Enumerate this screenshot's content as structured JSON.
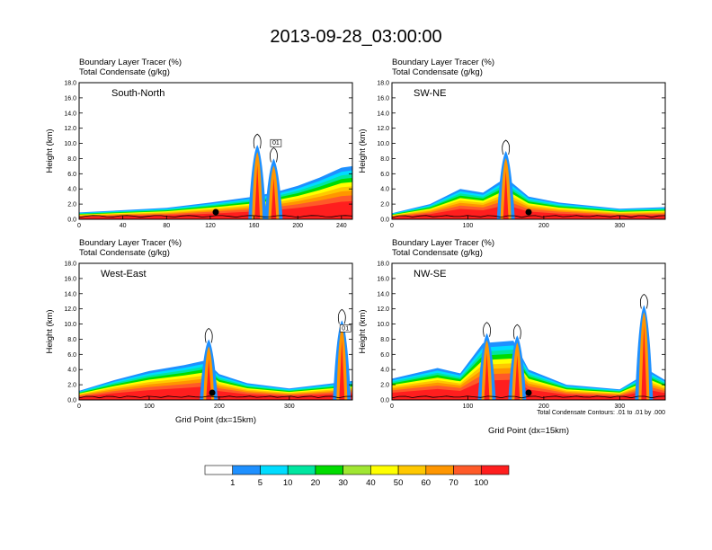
{
  "page": {
    "title": "2013-09-28_03:00:00",
    "xlabel": "Grid Point (dx=15km)",
    "note": "Total Condensate Contours: .01 to .01 by .000"
  },
  "colors": {
    "levels": [
      "#ffffff",
      "#1e7cff",
      "#1eb4ff",
      "#00f0f0",
      "#10e080",
      "#00dc00",
      "#a0e632",
      "#ffff00",
      "#ffc800",
      "#ff9600",
      "#ff5a28",
      "#ff1e1e",
      "#e60000"
    ]
  },
  "chart_data": [
    {
      "type": "heatmap",
      "name": "South-North",
      "title_line1": "Boundary Layer Tracer    (%)",
      "title_line2": "Total Condensate    (g/kg)",
      "ylabel": "Height (km)",
      "xlim": [
        0,
        250
      ],
      "xticks": [
        "0",
        "40",
        "80",
        "120",
        "160",
        "200",
        "240"
      ],
      "ylim": [
        0,
        18
      ],
      "yticks": [
        "0.0",
        "2.0",
        "4.0",
        "6.0",
        "8.0",
        "10.0",
        "12.0",
        "14.0",
        "16.0",
        "18.0"
      ],
      "marker_x": 125,
      "contour_label": "01",
      "boundary_layer_top": [
        [
          0,
          0.9
        ],
        [
          40,
          1.2
        ],
        [
          80,
          1.5
        ],
        [
          120,
          2.2
        ],
        [
          160,
          3.0
        ],
        [
          180,
          3.6
        ],
        [
          200,
          4.4
        ],
        [
          220,
          5.5
        ],
        [
          240,
          6.8
        ],
        [
          250,
          7.0
        ]
      ],
      "convection": [
        [
          163,
          9.8
        ],
        [
          178,
          8.0
        ]
      ]
    },
    {
      "type": "heatmap",
      "name": "SW-NE",
      "title_line1": "Boundary Layer Tracer    (%)",
      "title_line2": "Total Condensate    (g/kg)",
      "ylabel": "Height (km)",
      "xlim": [
        0,
        360
      ],
      "xticks": [
        "0",
        "100",
        "200",
        "300"
      ],
      "ylim": [
        0,
        18
      ],
      "yticks": [
        "0.0",
        "2.0",
        "4.0",
        "6.0",
        "8.0",
        "10.0",
        "12.0",
        "14.0",
        "16.0",
        "18.0"
      ],
      "marker_x": 180,
      "boundary_layer_top": [
        [
          0,
          0.8
        ],
        [
          50,
          2.0
        ],
        [
          90,
          4.0
        ],
        [
          120,
          3.5
        ],
        [
          150,
          5.5
        ],
        [
          180,
          3.0
        ],
        [
          220,
          2.2
        ],
        [
          300,
          1.4
        ],
        [
          360,
          1.6
        ]
      ],
      "convection": [
        [
          150,
          9.0
        ]
      ]
    },
    {
      "type": "heatmap",
      "name": "West-East",
      "title_line1": "Boundary Layer Tracer    (%)",
      "title_line2": "Total Condensate    (g/kg)",
      "ylabel": "Height (km)",
      "xlim": [
        0,
        390
      ],
      "xticks": [
        "0",
        "100",
        "200",
        "300"
      ],
      "ylim": [
        0,
        18
      ],
      "yticks": [
        "0.0",
        "2.0",
        "4.0",
        "6.0",
        "8.0",
        "10.0",
        "12.0",
        "14.0",
        "16.0",
        "18.0"
      ],
      "marker_x": 190,
      "contour_label": "01",
      "boundary_layer_top": [
        [
          0,
          1.2
        ],
        [
          50,
          2.6
        ],
        [
          100,
          3.8
        ],
        [
          150,
          4.6
        ],
        [
          180,
          5.2
        ],
        [
          200,
          3.4
        ],
        [
          240,
          2.2
        ],
        [
          300,
          1.5
        ],
        [
          390,
          2.5
        ]
      ],
      "convection": [
        [
          185,
          8.0
        ],
        [
          375,
          10.5
        ]
      ]
    },
    {
      "type": "heatmap",
      "name": "NW-SE",
      "title_line1": "Boundary Layer Tracer    (%)",
      "title_line2": "Total Condensate    (g/kg)",
      "ylabel": "Height (km)",
      "xlim": [
        0,
        360
      ],
      "xticks": [
        "0",
        "100",
        "200",
        "300"
      ],
      "ylim": [
        0,
        18
      ],
      "yticks": [
        "0.0",
        "2.0",
        "4.0",
        "6.0",
        "8.0",
        "10.0",
        "12.0",
        "14.0",
        "16.0",
        "18.0"
      ],
      "marker_x": 180,
      "boundary_layer_top": [
        [
          0,
          2.8
        ],
        [
          60,
          4.2
        ],
        [
          90,
          3.5
        ],
        [
          120,
          7.5
        ],
        [
          160,
          7.8
        ],
        [
          180,
          4.0
        ],
        [
          230,
          2.0
        ],
        [
          300,
          1.4
        ],
        [
          340,
          3.8
        ],
        [
          360,
          2.6
        ]
      ],
      "convection": [
        [
          125,
          8.8
        ],
        [
          165,
          8.5
        ],
        [
          332,
          12.5
        ]
      ]
    }
  ],
  "legend": {
    "labels": [
      "1",
      "5",
      "10",
      "20",
      "30",
      "40",
      "50",
      "60",
      "70",
      "100"
    ],
    "colors": [
      "#ffffff",
      "#1e90ff",
      "#00dcff",
      "#00e6a0",
      "#00dc00",
      "#a0e632",
      "#ffff00",
      "#ffc800",
      "#ff9600",
      "#ff5a28",
      "#ff1e1e"
    ]
  }
}
